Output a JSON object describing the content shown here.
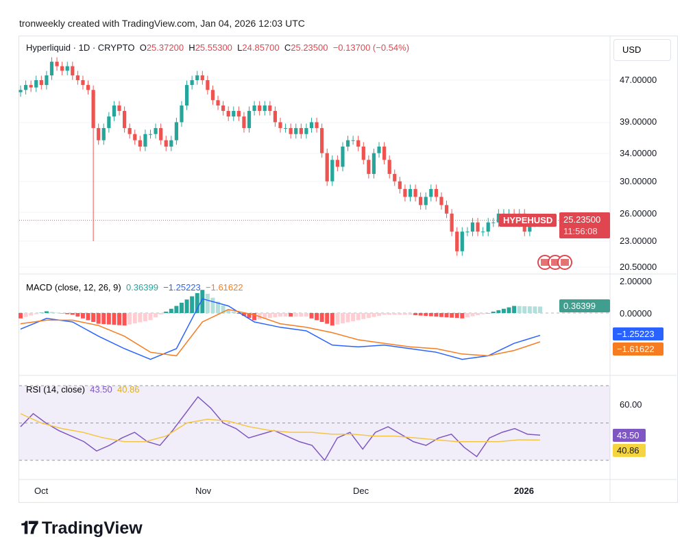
{
  "header": "tronweekly created with TradingView.com, Jan 04, 2026 12:03 UTC",
  "legend": {
    "symbol": "Hyperliquid · 1D · CRYPTO",
    "o_label": "O",
    "o": "25.37200",
    "h_label": "H",
    "h": "25.55300",
    "l_label": "L",
    "l": "24.85700",
    "c_label": "C",
    "c": "25.23500",
    "change": "−0.13700 (−0.54%)"
  },
  "currency_button": "USD",
  "ticker_tag": "HYPEHUSD",
  "price_tag": "25.23500",
  "countdown": "11:56:08",
  "macd_legend": {
    "title": "MACD (close, 12, 26, 9)",
    "hist": "0.36399",
    "macd": "−1.25223",
    "signal": "−1.61622"
  },
  "rsi_legend": {
    "title": "RSI (14, close)",
    "rsi": "43.50",
    "ma": "40.86"
  },
  "logo": "TradingView",
  "colors": {
    "up": "#26a69a",
    "down": "#ef5350",
    "macd": "#2962ff",
    "signal": "#f57c20",
    "rsi": "#7e57c2",
    "rsi_ma": "#f5c542"
  },
  "chart_data": {
    "type": "candlestick",
    "title": "Hyperliquid · 1D · CRYPTO",
    "price_axis": {
      "ticks": [
        "47.00000",
        "39.00000",
        "34.00000",
        "30.00000",
        "26.00000",
        "23.00000",
        "20.50000"
      ],
      "tick_values": [
        47,
        39,
        34,
        30,
        26,
        23,
        20.5
      ],
      "scale": "log"
    },
    "x_ticks": [
      "Oct",
      "Nov",
      "Dec",
      "2026"
    ],
    "start_date": "2025-09-26",
    "closes": [
      45,
      46,
      45.5,
      47,
      46,
      48,
      51,
      50,
      49,
      50,
      48,
      47,
      46,
      45,
      38,
      36,
      38,
      40,
      42,
      41,
      38,
      37,
      36,
      35,
      37,
      37,
      38,
      36,
      35,
      36,
      39,
      42,
      46,
      47,
      48,
      47,
      45,
      43,
      42,
      41,
      40,
      41,
      40,
      38,
      41,
      42,
      41,
      42,
      41,
      39,
      38,
      38,
      37,
      38,
      37,
      38,
      39,
      38,
      34,
      30,
      33,
      32,
      35,
      36,
      36,
      35,
      33,
      31,
      34,
      35,
      33,
      31,
      30,
      29,
      28,
      29,
      28,
      27,
      28,
      29,
      28,
      27,
      26,
      24,
      22,
      24,
      24,
      25,
      24,
      24,
      25,
      25,
      26,
      26,
      26,
      25,
      26,
      24,
      25,
      25.37,
      25.235
    ],
    "special_lows": {
      "14": 23
    },
    "macd_axis": {
      "ticks": [
        "2.00000",
        "0.00000"
      ]
    },
    "macd": [
      -0.9,
      -0.3,
      -0.5,
      -1.3,
      -2.0,
      -2.6,
      -2.0,
      0.8,
      0.4,
      -0.5,
      -0.8,
      -1.0,
      -1.8,
      -1.9,
      -1.8,
      -2.0,
      -2.2,
      -2.6,
      -2.4,
      -1.7,
      -1.25223
    ],
    "signal": [
      -0.6,
      -0.4,
      -0.4,
      -0.7,
      -1.3,
      -2.2,
      -2.4,
      -0.5,
      0.2,
      -0.1,
      -0.6,
      -0.8,
      -1.1,
      -1.5,
      -1.7,
      -1.9,
      -2.0,
      -2.3,
      -2.4,
      -2.1,
      -1.61622
    ],
    "rsi_axis": {
      "ticks": [
        "60.00"
      ],
      "bands": [
        70,
        30
      ]
    },
    "rsi": [
      48,
      55,
      50,
      46,
      43,
      40,
      35,
      38,
      42,
      45,
      40,
      38,
      46,
      55,
      64,
      58,
      50,
      47,
      42,
      44,
      46,
      43,
      40,
      38,
      30,
      42,
      45,
      36,
      45,
      48,
      44,
      40,
      38,
      42,
      44,
      37,
      32,
      42,
      45,
      47,
      44,
      43.5
    ],
    "rsi_ma": [
      55,
      50,
      47,
      45,
      42,
      40,
      40,
      43,
      50,
      52,
      51,
      48,
      46,
      45,
      45,
      44,
      44,
      43,
      43,
      42,
      41,
      40,
      40,
      40,
      41,
      40.86
    ]
  }
}
